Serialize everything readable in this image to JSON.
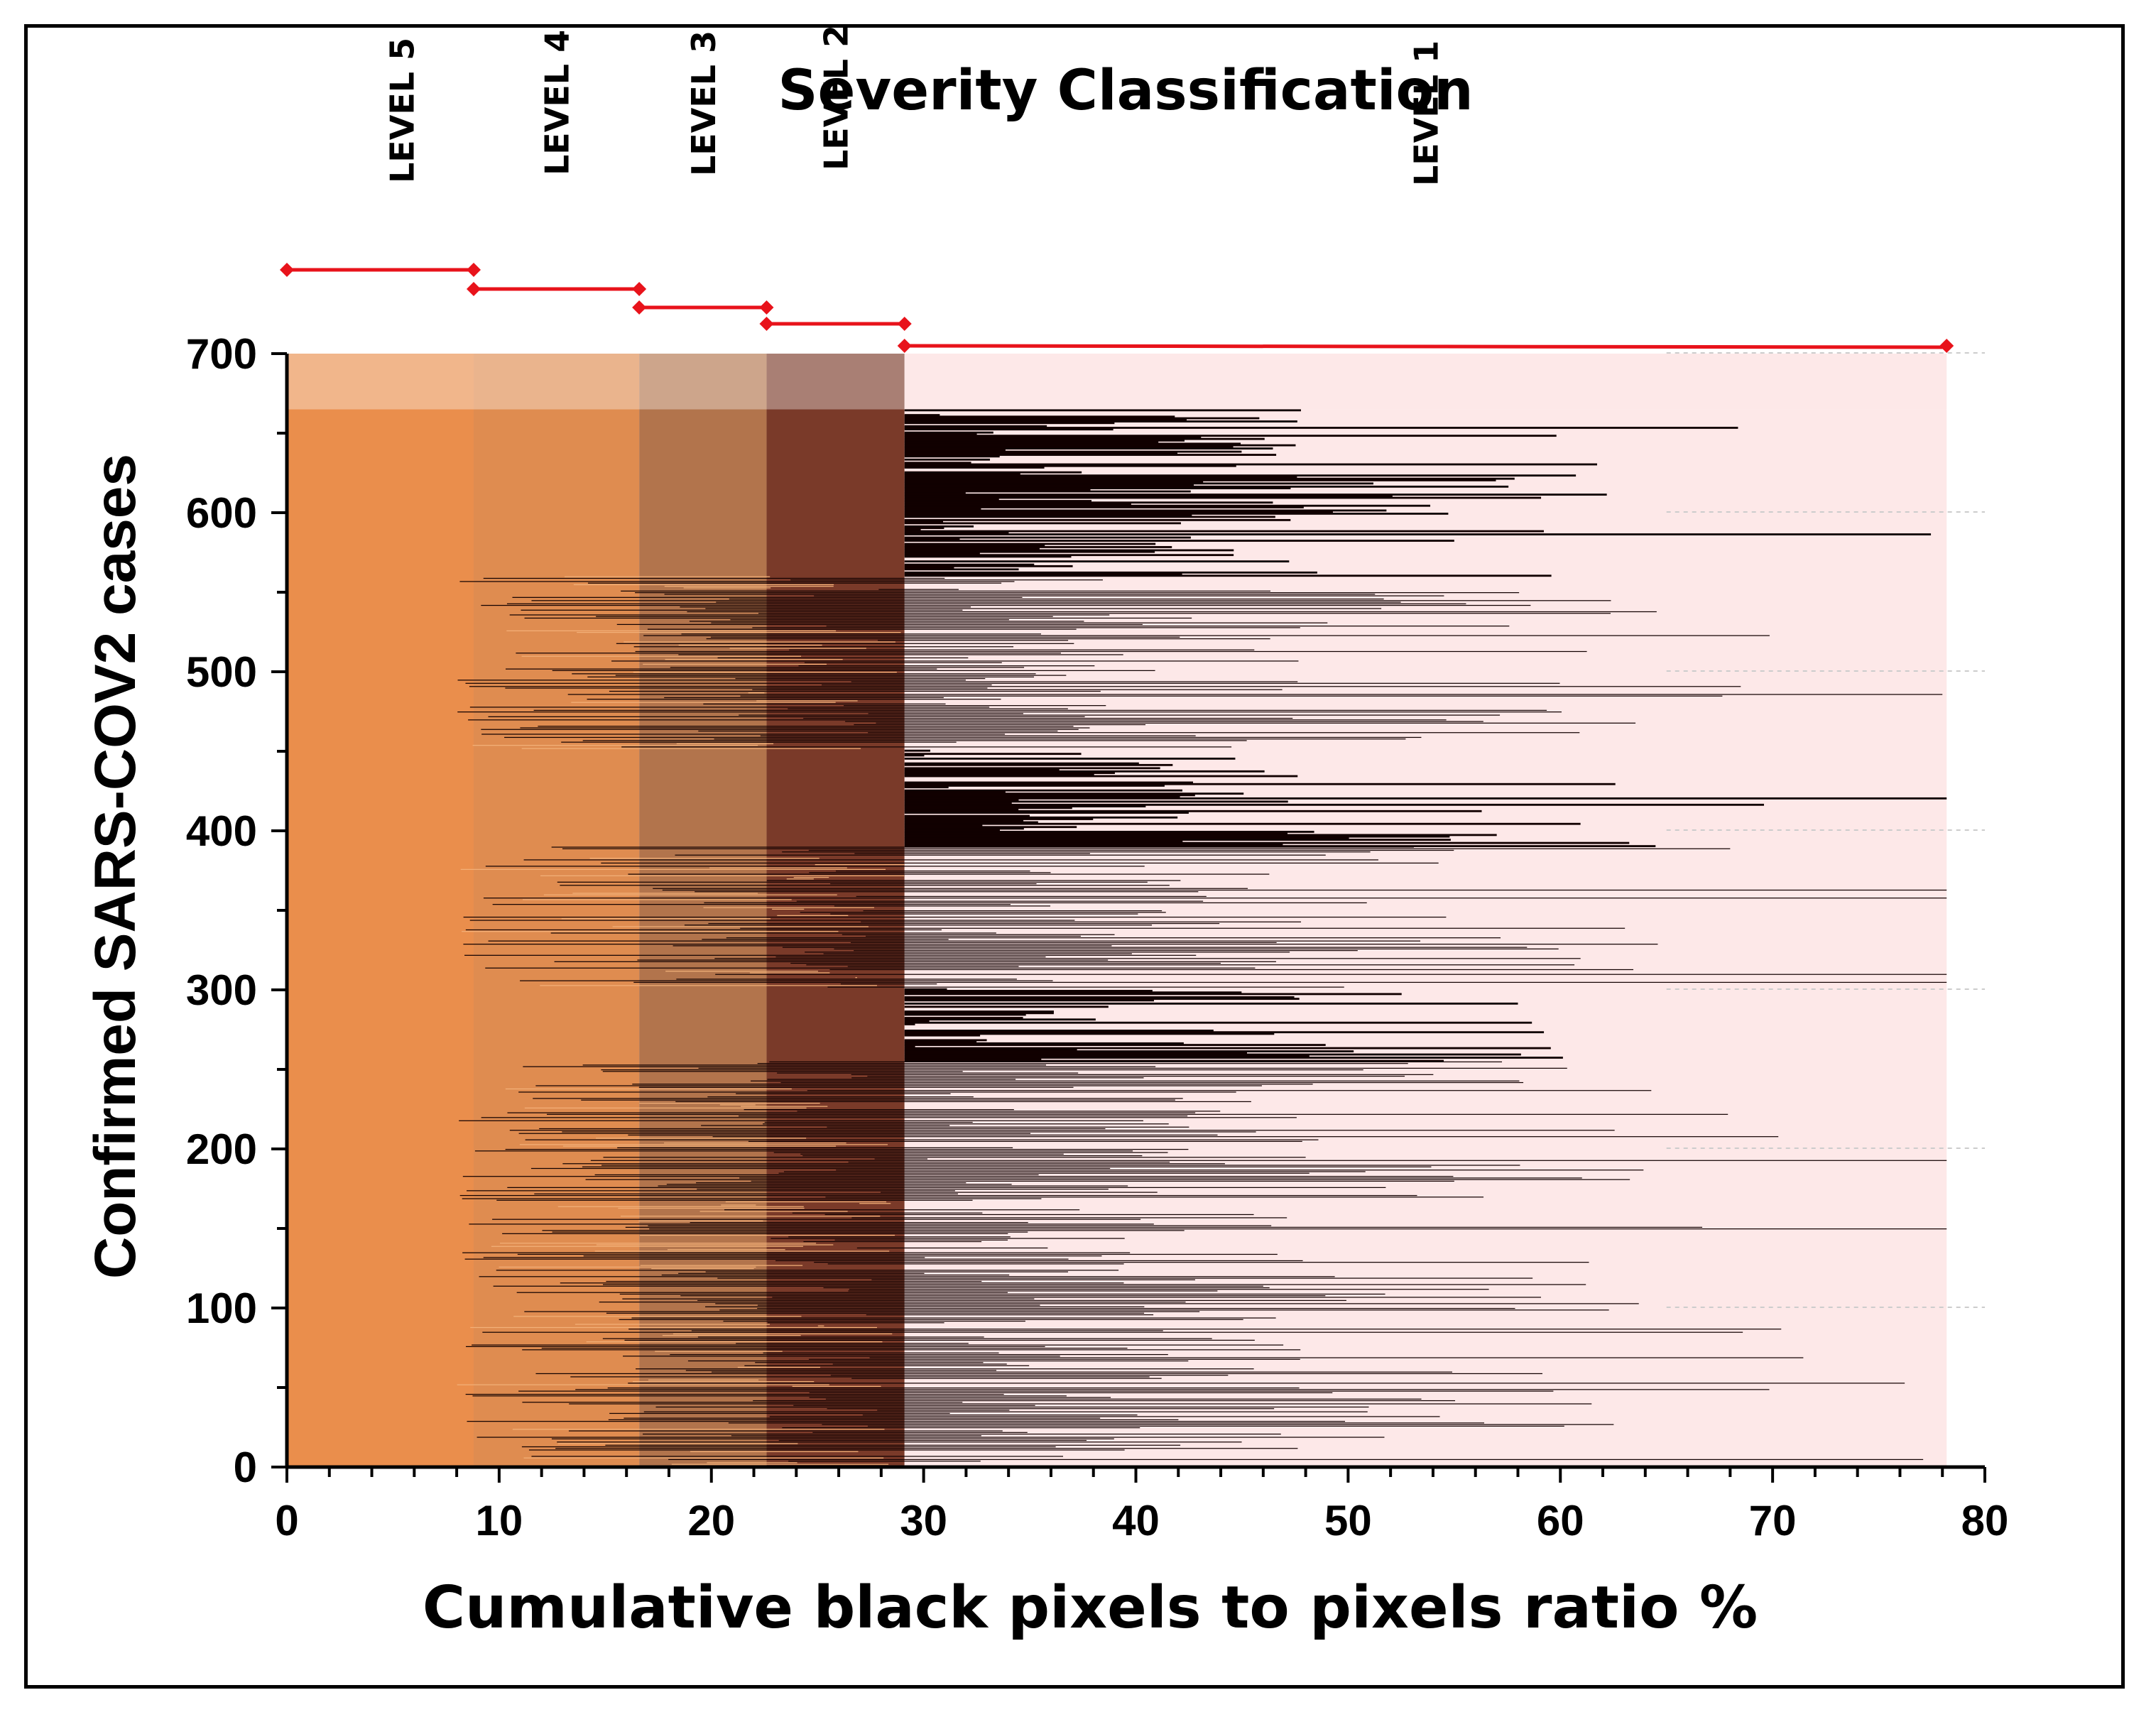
{
  "chart_data": {
    "type": "bar",
    "orientation": "horizontal",
    "title": "Severity Classification",
    "xlabel": "Cumulative black pixels to pixels ratio %",
    "ylabel": "Confirmed SARS-COV2 cases",
    "xlim": [
      0,
      80
    ],
    "ylim": [
      0,
      700
    ],
    "xticks": [
      "0",
      "10",
      "20",
      "30",
      "40",
      "50",
      "60",
      "70",
      "80"
    ],
    "yticks": [
      "0",
      "100",
      "200",
      "300",
      "400",
      "500",
      "600",
      "700"
    ],
    "levels": [
      {
        "name": "LEVEL 5",
        "from": 0,
        "to": 8.8,
        "color": "#ea8e4c"
      },
      {
        "name": "LEVEL 4",
        "from": 8.8,
        "to": 16.6,
        "color": "#df8c50"
      },
      {
        "name": "LEVEL 3",
        "from": 16.6,
        "to": 22.6,
        "color": "#b2744c"
      },
      {
        "name": "LEVEL 2",
        "from": 22.6,
        "to": 29.1,
        "color": "#7a3a29"
      },
      {
        "name": "LEVEL 1",
        "from": 29.1,
        "to": 78.2,
        "color": "#fde8e8"
      }
    ],
    "cases": 665,
    "bar_color": "#110000",
    "threshold_color": "#e8131b",
    "sample_values": [
      65,
      43,
      48,
      58,
      68,
      78,
      55,
      47,
      61,
      43,
      65,
      55,
      47,
      52,
      61,
      65
    ]
  }
}
